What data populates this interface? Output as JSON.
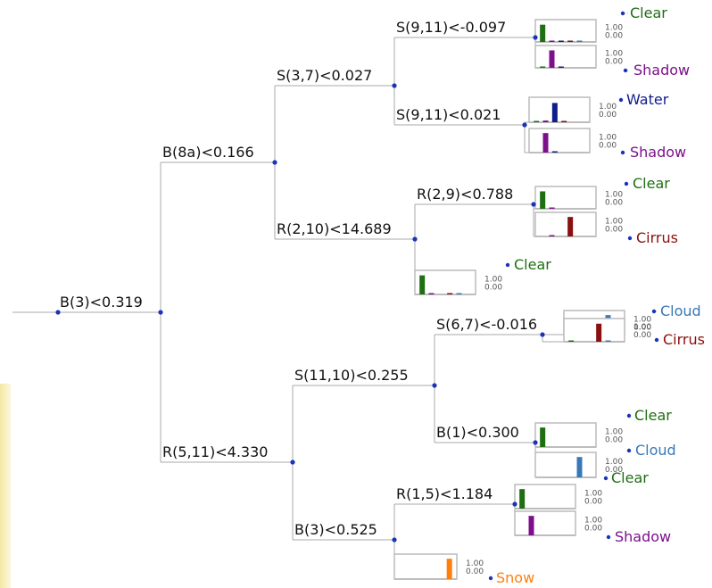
{
  "colors": {
    "Clear": "#1e6e12",
    "Shadow": "#7d0f8c",
    "Water": "#101d8a",
    "Cirrus": "#8a0f0f",
    "Cloud": "#3878b8",
    "Snow": "#ff7f0e"
  },
  "class_order": [
    "Clear",
    "Shadow",
    "Water",
    "Cirrus",
    "Cloud",
    "Snow"
  ],
  "scale": {
    "max": "1.00",
    "min": "0.00"
  },
  "splits": {
    "root": "B(3)<0.319",
    "b8a": "B(8a)<0.166",
    "r511": "R(5,11)<4.330",
    "s37": "S(3,7)<0.027",
    "r210": "R(2,10)<14.689",
    "s1110": "S(11,10)<0.255",
    "b3b": "B(3)<0.525",
    "s911a": "S(9,11)<-0.097",
    "s911b": "S(9,11)<0.021",
    "r29": "R(2,9)<0.788",
    "s67": "S(6,7)<-0.016",
    "b1": "B(1)<0.300",
    "r15": "R(1,5)<1.184"
  },
  "leaves": [
    {
      "id": "leaf1",
      "label": "Clear",
      "probs": [
        0.92,
        0.06,
        0.02,
        0.01,
        0.01,
        0.0
      ]
    },
    {
      "id": "leaf2",
      "label": "Shadow",
      "probs": [
        0.02,
        0.93,
        0.05,
        0.0,
        0.0,
        0.0
      ]
    },
    {
      "id": "leaf3",
      "label": "Water",
      "probs": [
        0.02,
        0.08,
        0.9,
        0.02,
        0.0,
        0.0
      ]
    },
    {
      "id": "leaf4",
      "label": "Shadow",
      "probs": [
        0.0,
        0.95,
        0.02,
        0.0,
        0.0,
        0.0
      ]
    },
    {
      "id": "leaf5",
      "label": "Clear",
      "probs": [
        0.93,
        0.05,
        0.0,
        0.0,
        0.0,
        0.0
      ]
    },
    {
      "id": "leaf6",
      "label": "Cirrus",
      "probs": [
        0.0,
        0.02,
        0.0,
        0.95,
        0.0,
        0.0
      ]
    },
    {
      "id": "leaf7",
      "label": "Clear",
      "probs": [
        0.93,
        0.05,
        0.0,
        0.02,
        0.01,
        0.0
      ]
    },
    {
      "id": "leaf8",
      "label": "Cloud",
      "probs": [
        0.0,
        0.0,
        0.0,
        0.02,
        0.95,
        0.0
      ]
    },
    {
      "id": "leaf9",
      "label": "Cirrus",
      "probs": [
        0.05,
        0.0,
        0.0,
        0.92,
        0.06,
        0.0
      ]
    },
    {
      "id": "leaf10",
      "label": "Clear",
      "probs": [
        0.95,
        0.0,
        0.0,
        0.0,
        0.0,
        0.0
      ]
    },
    {
      "id": "leaf11",
      "label": "Cloud",
      "probs": [
        0.0,
        0.0,
        0.0,
        0.0,
        0.95,
        0.0
      ]
    },
    {
      "id": "leaf12",
      "label": "Clear",
      "probs": [
        0.95,
        0.0,
        0.0,
        0.0,
        0.0,
        0.0
      ]
    },
    {
      "id": "leaf13",
      "label": "Shadow",
      "probs": [
        0.0,
        0.95,
        0.0,
        0.0,
        0.0,
        0.0
      ]
    },
    {
      "id": "leaf14",
      "label": "Snow",
      "probs": [
        0.0,
        0.0,
        0.0,
        0.0,
        0.0,
        0.95
      ]
    }
  ]
}
